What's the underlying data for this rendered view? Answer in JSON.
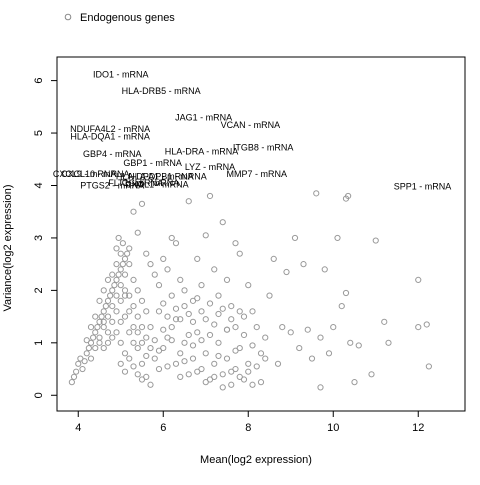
{
  "chart_data": {
    "type": "scatter",
    "title": "",
    "xlabel": "Mean(log2 expression)",
    "ylabel": "Variance(log2 expression)",
    "xlim": [
      3.5,
      13.1
    ],
    "ylim": [
      -0.3,
      6.45
    ],
    "x_ticks": [
      4,
      6,
      8,
      10,
      12
    ],
    "y_ticks": [
      0,
      1,
      2,
      3,
      4,
      5,
      6
    ],
    "grid": false,
    "legend": {
      "position": "top-left",
      "entries": [
        {
          "label": "Endogenous genes",
          "marker": "open-circle",
          "color": "#888888"
        }
      ]
    },
    "series": [
      {
        "name": "Endogenous genes",
        "color": "#9a9a9a",
        "points": [
          [
            3.85,
            0.25
          ],
          [
            3.9,
            0.35
          ],
          [
            3.95,
            0.45
          ],
          [
            4.0,
            0.6
          ],
          [
            4.05,
            0.7
          ],
          [
            4.1,
            0.5
          ],
          [
            4.15,
            0.65
          ],
          [
            4.2,
            0.8
          ],
          [
            4.25,
            0.9
          ],
          [
            4.3,
            1.0
          ],
          [
            4.35,
            1.1
          ],
          [
            4.4,
            1.2
          ],
          [
            4.45,
            1.3
          ],
          [
            4.5,
            1.4
          ],
          [
            4.55,
            1.5
          ],
          [
            4.6,
            1.6
          ],
          [
            4.65,
            1.7
          ],
          [
            4.7,
            1.8
          ],
          [
            4.75,
            1.9
          ],
          [
            4.8,
            2.0
          ],
          [
            4.85,
            2.1
          ],
          [
            4.9,
            2.2
          ],
          [
            4.95,
            2.3
          ],
          [
            5.0,
            2.4
          ],
          [
            5.05,
            2.5
          ],
          [
            5.1,
            2.6
          ],
          [
            5.15,
            2.7
          ],
          [
            5.2,
            2.8
          ],
          [
            4.3,
            0.7
          ],
          [
            4.4,
            0.9
          ],
          [
            4.5,
            1.1
          ],
          [
            4.6,
            1.3
          ],
          [
            4.7,
            1.5
          ],
          [
            4.8,
            1.7
          ],
          [
            4.9,
            1.9
          ],
          [
            5.0,
            2.1
          ],
          [
            5.1,
            2.3
          ],
          [
            5.2,
            2.5
          ],
          [
            5.3,
            2.2
          ],
          [
            5.4,
            2.0
          ],
          [
            5.5,
            1.8
          ],
          [
            5.6,
            1.6
          ],
          [
            4.4,
            1.5
          ],
          [
            4.5,
            1.8
          ],
          [
            4.6,
            2.0
          ],
          [
            4.7,
            2.2
          ],
          [
            4.8,
            1.4
          ],
          [
            4.9,
            1.2
          ],
          [
            5.0,
            1.0
          ],
          [
            5.1,
            0.8
          ],
          [
            5.2,
            1.9
          ],
          [
            5.3,
            1.7
          ],
          [
            5.4,
            1.5
          ],
          [
            5.5,
            1.3
          ],
          [
            5.6,
            1.1
          ],
          [
            5.7,
            0.9
          ],
          [
            5.8,
            0.7
          ],
          [
            5.9,
            0.5
          ],
          [
            6.0,
            0.9
          ],
          [
            6.1,
            1.1
          ],
          [
            6.2,
            1.3
          ],
          [
            6.3,
            0.6
          ],
          [
            6.4,
            0.8
          ],
          [
            6.5,
            1.0
          ],
          [
            6.6,
            0.4
          ],
          [
            6.7,
            0.7
          ],
          [
            6.8,
            1.2
          ],
          [
            6.9,
            0.5
          ],
          [
            7.0,
            0.8
          ],
          [
            7.1,
            0.3
          ],
          [
            7.2,
            0.6
          ],
          [
            7.3,
            1.0
          ],
          [
            7.4,
            0.4
          ],
          [
            7.5,
            0.7
          ],
          [
            7.6,
            0.2
          ],
          [
            7.7,
            0.5
          ],
          [
            7.8,
            0.9
          ],
          [
            7.9,
            0.3
          ],
          [
            8.0,
            0.6
          ],
          [
            8.1,
            0.2
          ],
          [
            4.6,
            0.9
          ],
          [
            4.7,
            1.2
          ],
          [
            4.8,
            2.3
          ],
          [
            4.9,
            2.5
          ],
          [
            5.0,
            2.7
          ],
          [
            5.1,
            2.0
          ],
          [
            5.2,
            1.6
          ],
          [
            5.3,
            1.3
          ],
          [
            5.4,
            0.9
          ],
          [
            5.5,
            0.6
          ],
          [
            4.5,
            1.0
          ],
          [
            4.6,
            1.4
          ],
          [
            4.7,
            1.0
          ],
          [
            4.8,
            1.1
          ],
          [
            4.9,
            1.6
          ],
          [
            5.0,
            1.8
          ],
          [
            5.1,
            1.5
          ],
          [
            5.2,
            1.2
          ],
          [
            5.3,
            1.0
          ],
          [
            5.4,
            1.2
          ],
          [
            5.0,
            1.4
          ],
          [
            5.1,
            1.9
          ],
          [
            4.9,
            2.8
          ],
          [
            5.05,
            2.9
          ],
          [
            4.95,
            3.0
          ],
          [
            5.3,
            3.5
          ],
          [
            5.5,
            3.65
          ],
          [
            5.4,
            3.1
          ],
          [
            5.6,
            2.7
          ],
          [
            5.7,
            2.5
          ],
          [
            5.8,
            2.3
          ],
          [
            5.9,
            2.1
          ],
          [
            6.0,
            2.6
          ],
          [
            6.1,
            2.4
          ],
          [
            6.2,
            3.0
          ],
          [
            6.3,
            2.9
          ],
          [
            6.4,
            2.2
          ],
          [
            6.5,
            2.0
          ],
          [
            6.6,
            3.7
          ],
          [
            6.7,
            1.8
          ],
          [
            6.8,
            2.6
          ],
          [
            6.9,
            2.1
          ],
          [
            7.0,
            3.05
          ],
          [
            7.1,
            3.8
          ],
          [
            7.2,
            2.4
          ],
          [
            7.3,
            1.9
          ],
          [
            7.4,
            3.3
          ],
          [
            7.5,
            2.2
          ],
          [
            7.6,
            1.7
          ],
          [
            7.7,
            2.9
          ],
          [
            7.8,
            2.7
          ],
          [
            7.9,
            1.5
          ],
          [
            8.0,
            2.1
          ],
          [
            8.1,
            1.6
          ],
          [
            8.2,
            1.3
          ],
          [
            8.3,
            0.8
          ],
          [
            8.4,
            1.1
          ],
          [
            8.5,
            1.9
          ],
          [
            8.6,
            2.6
          ],
          [
            8.7,
            0.6
          ],
          [
            8.8,
            1.3
          ],
          [
            8.9,
            2.35
          ],
          [
            9.0,
            1.2
          ],
          [
            9.1,
            3.0
          ],
          [
            9.2,
            0.9
          ],
          [
            9.3,
            2.5
          ],
          [
            9.4,
            1.25
          ],
          [
            9.5,
            0.7
          ],
          [
            9.6,
            3.85
          ],
          [
            9.7,
            1.1
          ],
          [
            9.8,
            2.4
          ],
          [
            9.9,
            0.8
          ],
          [
            10.0,
            1.3
          ],
          [
            10.1,
            3.0
          ],
          [
            10.2,
            1.7
          ],
          [
            10.3,
            3.75
          ],
          [
            10.35,
            3.8
          ],
          [
            10.4,
            1.0
          ],
          [
            10.5,
            0.25
          ],
          [
            10.6,
            0.95
          ],
          [
            10.9,
            0.4
          ],
          [
            11.0,
            2.95
          ],
          [
            11.2,
            1.4
          ],
          [
            11.3,
            1.0
          ],
          [
            12.0,
            2.2
          ],
          [
            12.0,
            1.3
          ],
          [
            12.2,
            1.35
          ],
          [
            12.25,
            0.55
          ],
          [
            9.7,
            0.15
          ],
          [
            10.3,
            1.95
          ],
          [
            5.5,
            1.0
          ],
          [
            5.6,
            0.75
          ],
          [
            5.7,
            1.3
          ],
          [
            5.8,
            1.05
          ],
          [
            5.9,
            0.85
          ],
          [
            6.0,
            1.25
          ],
          [
            6.1,
            0.55
          ],
          [
            6.2,
            1.05
          ],
          [
            6.3,
            1.45
          ],
          [
            6.4,
            0.35
          ],
          [
            6.5,
            0.65
          ],
          [
            6.6,
            1.15
          ],
          [
            6.7,
            0.95
          ],
          [
            6.8,
            0.45
          ],
          [
            6.9,
            1.05
          ],
          [
            7.0,
            0.25
          ],
          [
            7.1,
            1.15
          ],
          [
            7.2,
            0.35
          ],
          [
            7.3,
            0.75
          ],
          [
            7.4,
            0.15
          ],
          [
            7.5,
            1.25
          ],
          [
            7.6,
            0.45
          ],
          [
            7.7,
            0.85
          ],
          [
            7.8,
            0.35
          ],
          [
            7.9,
            1.15
          ],
          [
            8.0,
            0.45
          ],
          [
            8.1,
            0.95
          ],
          [
            8.2,
            0.55
          ],
          [
            8.3,
            0.25
          ],
          [
            8.4,
            0.7
          ],
          [
            5.9,
            1.6
          ],
          [
            6.0,
            1.75
          ],
          [
            6.1,
            1.5
          ],
          [
            6.2,
            1.9
          ],
          [
            6.3,
            1.65
          ],
          [
            6.4,
            1.45
          ],
          [
            6.5,
            1.7
          ],
          [
            6.6,
            1.55
          ],
          [
            6.7,
            1.4
          ],
          [
            6.8,
            1.85
          ],
          [
            6.9,
            1.6
          ],
          [
            7.0,
            1.45
          ],
          [
            7.1,
            1.75
          ],
          [
            7.2,
            1.35
          ],
          [
            7.3,
            1.55
          ],
          [
            7.4,
            1.65
          ],
          [
            7.5,
            1.25
          ],
          [
            7.6,
            1.45
          ],
          [
            7.7,
            1.3
          ],
          [
            7.8,
            1.6
          ],
          [
            5.0,
            0.6
          ],
          [
            5.1,
            0.45
          ],
          [
            5.2,
            0.7
          ],
          [
            5.3,
            0.55
          ],
          [
            5.4,
            0.4
          ],
          [
            5.5,
            0.3
          ],
          [
            5.6,
            0.35
          ],
          [
            5.7,
            0.2
          ],
          [
            4.3,
            1.3
          ],
          [
            4.2,
            1.05
          ]
        ]
      }
    ],
    "annotations": [
      {
        "label": "IDO1 - mRNA",
        "x": 5.0,
        "y": 6.12
      },
      {
        "label": "HLA-DRB5 - mRNA",
        "x": 5.95,
        "y": 5.8
      },
      {
        "label": "JAG1 - mRNA",
        "x": 6.95,
        "y": 5.3
      },
      {
        "label": "VCAN - mRNA",
        "x": 8.05,
        "y": 5.15
      },
      {
        "label": "NDUFA4L2 - mRNA",
        "x": 4.75,
        "y": 5.08
      },
      {
        "label": "HLA-DQA1 - mRNA",
        "x": 4.75,
        "y": 4.93
      },
      {
        "label": "ITGB8 - mRNA",
        "x": 8.35,
        "y": 4.72
      },
      {
        "label": "GBP4 - mRNA",
        "x": 4.8,
        "y": 4.6
      },
      {
        "label": "HLA-DRA - mRNA",
        "x": 6.9,
        "y": 4.65
      },
      {
        "label": "GBP1 - mRNA",
        "x": 5.75,
        "y": 4.43
      },
      {
        "label": "LYZ - mRNA",
        "x": 7.1,
        "y": 4.35
      },
      {
        "label": "CXCL9 - mRNA",
        "x": 4.15,
        "y": 4.22
      },
      {
        "label": "CXCL10 - mRNA",
        "x": 4.4,
        "y": 4.22
      },
      {
        "label": "HLA-DPA1 - mRNA",
        "x": 5.8,
        "y": 4.17
      },
      {
        "label": "HLA-DPB1 - mRNA",
        "x": 6.1,
        "y": 4.17
      },
      {
        "label": "MMP7 - mRNA",
        "x": 8.2,
        "y": 4.22
      },
      {
        "label": "FLT1 - mRNA",
        "x": 5.35,
        "y": 4.05
      },
      {
        "label": "CCL5 - mRNA",
        "x": 5.7,
        "y": 4.05
      },
      {
        "label": "CXCL1 - mRNA",
        "x": 5.85,
        "y": 4.02
      },
      {
        "label": "PTGS2 - mRNA",
        "x": 4.8,
        "y": 4.0
      },
      {
        "label": "SPP1 - mRNA",
        "x": 12.1,
        "y": 3.98
      }
    ]
  }
}
